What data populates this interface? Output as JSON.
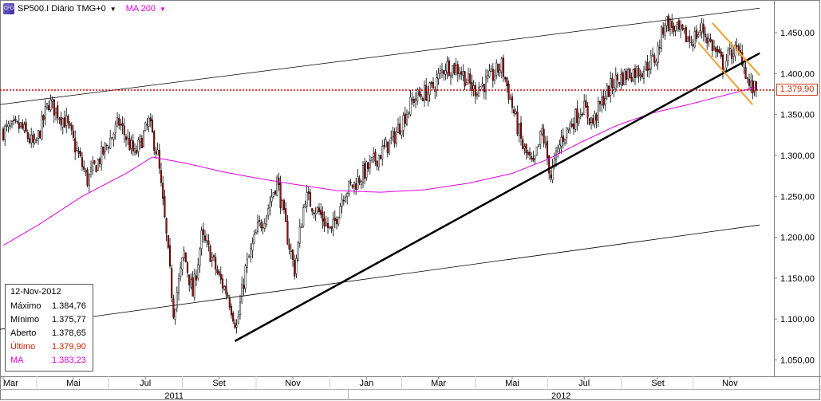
{
  "header": {
    "symbol": "SP500.I Diário TMG+0",
    "icon": "cfd-symbol-icon",
    "indicator": "MA 200",
    "indicator_color": "#e000e0"
  },
  "info_panel": {
    "date": "12-Nov-2012",
    "rows": [
      {
        "label": "Máximo",
        "value": "1.384,76",
        "color": "#000000"
      },
      {
        "label": "Mínimo",
        "value": "1.375,77",
        "color": "#000000"
      },
      {
        "label": "Aberto",
        "value": "1.378,65",
        "color": "#000000"
      },
      {
        "label": "Último",
        "value": "1.379,90",
        "color": "#d02000"
      },
      {
        "label": "MA",
        "value": "1.383,23",
        "color": "#e000e0"
      }
    ]
  },
  "last_price_label": "1.379,90",
  "chart_data": {
    "type": "candlestick",
    "instrument": "SP500.I",
    "timeframe": "Diário",
    "ylim": [
      1030,
      1490
    ],
    "y_ticks": [
      "1.050,00",
      "1.100,00",
      "1.150,00",
      "1.200,00",
      "1.250,00",
      "1.300,00",
      "1.350,00",
      "1.400,00",
      "1.450,00"
    ],
    "y_tick_values": [
      1050,
      1100,
      1150,
      1200,
      1250,
      1300,
      1350,
      1400,
      1450
    ],
    "x_months": [
      "2011 Mar",
      "Mai",
      "Jul",
      "Set",
      "Nov",
      "Jan",
      "Mar",
      "Mai",
      "Jul",
      "Set",
      "Nov"
    ],
    "x_month_idx": [
      0,
      40,
      81,
      123,
      165,
      207,
      248,
      290,
      331,
      373,
      414
    ],
    "years": [
      "2011",
      "2012"
    ],
    "year_start_idx": [
      -45,
      207
    ],
    "n_bars": 430,
    "price_path": [
      {
        "i": 0,
        "v": 1330
      },
      {
        "i": 10,
        "v": 1335
      },
      {
        "i": 18,
        "v": 1310
      },
      {
        "i": 26,
        "v": 1365
      },
      {
        "i": 36,
        "v": 1340
      },
      {
        "i": 48,
        "v": 1270
      },
      {
        "i": 56,
        "v": 1300
      },
      {
        "i": 66,
        "v": 1340
      },
      {
        "i": 75,
        "v": 1300
      },
      {
        "i": 83,
        "v": 1340
      },
      {
        "i": 88,
        "v": 1300
      },
      {
        "i": 93,
        "v": 1200
      },
      {
        "i": 97,
        "v": 1110
      },
      {
        "i": 103,
        "v": 1180
      },
      {
        "i": 108,
        "v": 1130
      },
      {
        "i": 113,
        "v": 1200
      },
      {
        "i": 118,
        "v": 1180
      },
      {
        "i": 123,
        "v": 1150
      },
      {
        "i": 128,
        "v": 1130
      },
      {
        "i": 133,
        "v": 1090
      },
      {
        "i": 138,
        "v": 1160
      },
      {
        "i": 145,
        "v": 1210
      },
      {
        "i": 150,
        "v": 1230
      },
      {
        "i": 156,
        "v": 1270
      },
      {
        "i": 162,
        "v": 1200
      },
      {
        "i": 166,
        "v": 1160
      },
      {
        "i": 172,
        "v": 1250
      },
      {
        "i": 180,
        "v": 1230
      },
      {
        "i": 187,
        "v": 1205
      },
      {
        "i": 194,
        "v": 1255
      },
      {
        "i": 200,
        "v": 1265
      },
      {
        "i": 210,
        "v": 1290
      },
      {
        "i": 222,
        "v": 1320
      },
      {
        "i": 234,
        "v": 1370
      },
      {
        "i": 244,
        "v": 1380
      },
      {
        "i": 252,
        "v": 1410
      },
      {
        "i": 260,
        "v": 1405
      },
      {
        "i": 268,
        "v": 1380
      },
      {
        "i": 276,
        "v": 1390
      },
      {
        "i": 284,
        "v": 1410
      },
      {
        "i": 290,
        "v": 1360
      },
      {
        "i": 296,
        "v": 1310
      },
      {
        "i": 302,
        "v": 1285
      },
      {
        "i": 307,
        "v": 1330
      },
      {
        "i": 312,
        "v": 1275
      },
      {
        "i": 318,
        "v": 1320
      },
      {
        "i": 324,
        "v": 1340
      },
      {
        "i": 330,
        "v": 1360
      },
      {
        "i": 336,
        "v": 1340
      },
      {
        "i": 342,
        "v": 1370
      },
      {
        "i": 348,
        "v": 1390
      },
      {
        "i": 356,
        "v": 1400
      },
      {
        "i": 364,
        "v": 1405
      },
      {
        "i": 372,
        "v": 1420
      },
      {
        "i": 377,
        "v": 1465
      },
      {
        "i": 385,
        "v": 1450
      },
      {
        "i": 392,
        "v": 1440
      },
      {
        "i": 398,
        "v": 1455
      },
      {
        "i": 405,
        "v": 1430
      },
      {
        "i": 410,
        "v": 1410
      },
      {
        "i": 416,
        "v": 1430
      },
      {
        "i": 421,
        "v": 1420
      },
      {
        "i": 425,
        "v": 1385
      },
      {
        "i": 428,
        "v": 1380
      }
    ],
    "ma200_path": [
      {
        "i": 0,
        "v": 1190
      },
      {
        "i": 20,
        "v": 1215
      },
      {
        "i": 45,
        "v": 1250
      },
      {
        "i": 70,
        "v": 1278
      },
      {
        "i": 85,
        "v": 1298
      },
      {
        "i": 105,
        "v": 1290
      },
      {
        "i": 125,
        "v": 1280
      },
      {
        "i": 145,
        "v": 1272
      },
      {
        "i": 165,
        "v": 1265
      },
      {
        "i": 190,
        "v": 1257
      },
      {
        "i": 215,
        "v": 1255
      },
      {
        "i": 240,
        "v": 1258
      },
      {
        "i": 265,
        "v": 1266
      },
      {
        "i": 290,
        "v": 1278
      },
      {
        "i": 310,
        "v": 1295
      },
      {
        "i": 330,
        "v": 1317
      },
      {
        "i": 350,
        "v": 1337
      },
      {
        "i": 370,
        "v": 1352
      },
      {
        "i": 390,
        "v": 1362
      },
      {
        "i": 410,
        "v": 1373
      },
      {
        "i": 428,
        "v": 1383
      }
    ],
    "last_price": 1379.9,
    "trendlines": [
      {
        "name": "upper-channel-line",
        "color": "#000000",
        "width": 0.8,
        "p1": {
          "i": -10,
          "v": 1360
        },
        "p2": {
          "i": 431,
          "v": 1480
        }
      },
      {
        "name": "lower-channel-line",
        "color": "#000000",
        "width": 0.8,
        "p1": {
          "i": -10,
          "v": 1085
        },
        "p2": {
          "i": 431,
          "v": 1215
        }
      },
      {
        "name": "support-trend-line",
        "color": "#000000",
        "width": 2.5,
        "p1": {
          "i": 132,
          "v": 1073
        },
        "p2": {
          "i": 431,
          "v": 1425
        }
      },
      {
        "name": "channel-upper-orange",
        "color": "#f0a030",
        "width": 2,
        "p1": {
          "i": 404,
          "v": 1462
        },
        "p2": {
          "i": 431,
          "v": 1398
        }
      },
      {
        "name": "channel-lower-orange",
        "color": "#f0a030",
        "width": 2,
        "p1": {
          "i": 396,
          "v": 1438
        },
        "p2": {
          "i": 427,
          "v": 1362
        }
      }
    ],
    "colors": {
      "up": "#ffffff",
      "down": "#c00000",
      "wick": "#000000",
      "ma": "#e000e0",
      "last_line": "#cc0000"
    }
  }
}
